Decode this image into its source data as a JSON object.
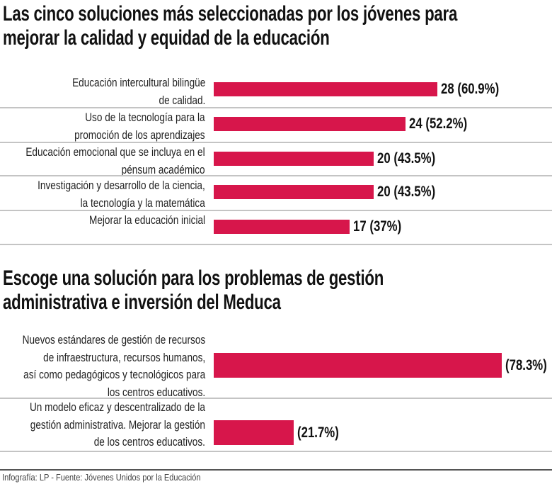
{
  "colors": {
    "bar": "#d7164b",
    "separator": "#c4c4c4"
  },
  "chart_data": [
    {
      "type": "bar",
      "orientation": "horizontal",
      "title": [
        "Las cinco soluciones más seleccionadas por los jóvenes para",
        "mejorar la calidad y equidad de la educación"
      ],
      "categories": [
        [
          "Educación intercultural bilingüe",
          "de calidad."
        ],
        [
          "Uso de la tecnología para la",
          "promoción de los aprendizajes"
        ],
        [
          "Educación emocional que se incluya en el",
          "pénsum académico"
        ],
        [
          "Investigación y desarrollo de la ciencia,",
          "la tecnología y la matemática"
        ],
        [
          "Mejorar la educación inicial"
        ]
      ],
      "values": [
        28,
        24,
        20,
        20,
        17
      ],
      "percents": [
        60.9,
        52.2,
        43.5,
        43.5,
        37
      ],
      "data_labels": [
        "28 (60.9%)",
        "24 (52.2%)",
        "20 (43.5%)",
        "20 (43.5%)",
        "17 (37%)"
      ]
    },
    {
      "type": "bar",
      "orientation": "horizontal",
      "title": [
        "Escoge una solución para los problemas de gestión",
        "administrativa e inversión del Meduca"
      ],
      "categories": [
        [
          "Nuevos estándares de gestión de recursos",
          "de infraestructura, recursos humanos,",
          "así como pedagógicos y tecnológicos para",
          "los centros educativos."
        ],
        [
          "Un modelo eficaz y descentralizado de la",
          "gestión administrativa. Mejorar la gestión",
          "de los centros educativos."
        ]
      ],
      "values": [
        78.3,
        21.7
      ],
      "data_labels": [
        "(78.3%)",
        "(21.7%)"
      ]
    }
  ],
  "footer": "Infografía: LP - Fuente: Jóvenes Unidos por la Educación"
}
